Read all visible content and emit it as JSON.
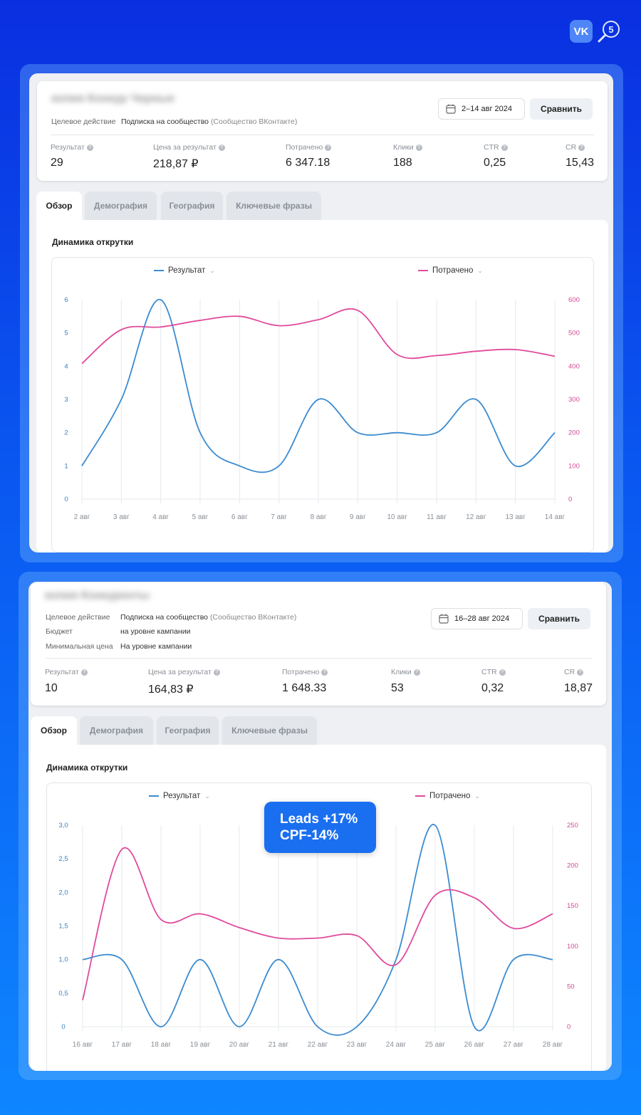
{
  "logos": {
    "vk": "VK",
    "search_icon": "search-5-icon"
  },
  "colors": {
    "result": "#3b8bd0",
    "spent": "#e04a9c"
  },
  "reports": [
    {
      "blurred_title": "копия Конкур Черные",
      "meta": [
        {
          "label": "Целевое действие",
          "value": "Подписка на сообщество",
          "value_note": "(Сообщество ВКонтакте)"
        }
      ],
      "date": "2–14 авг 2024",
      "compare": "Сравнить",
      "kpis": [
        {
          "label": "Результат",
          "value": "29"
        },
        {
          "label": "Цена за результат",
          "value": "218,87 ₽"
        },
        {
          "label": "Потрачено",
          "value": "6 347.18"
        },
        {
          "label": "Клики",
          "value": "188"
        },
        {
          "label": "CTR",
          "value": "0,25"
        },
        {
          "label": "CR",
          "value": "15,43"
        }
      ],
      "tabs": [
        "Обзор",
        "Демография",
        "География",
        "Ключевые фразы"
      ],
      "chart_title": "Динамика открутки",
      "legend": {
        "left": "Результат",
        "right": "Потрачено"
      }
    },
    {
      "blurred_title": "копия Конкуренты",
      "meta": [
        {
          "label": "Целевое действие",
          "value": "Подписка на сообщество",
          "value_note": "(Сообщество ВКонтакте)"
        },
        {
          "label": "Бюджет",
          "value": "на уровне кампании",
          "value_note": ""
        },
        {
          "label": "Минимальная цена",
          "value": "На уровне кампании",
          "value_note": ""
        }
      ],
      "date": "16–28 авг 2024",
      "compare": "Сравнить",
      "kpis": [
        {
          "label": "Результат",
          "value": "10"
        },
        {
          "label": "Цена за результат",
          "value": "164,83 ₽"
        },
        {
          "label": "Потрачено",
          "value": "1 648.33"
        },
        {
          "label": "Клики",
          "value": "53"
        },
        {
          "label": "CTR",
          "value": "0,32"
        },
        {
          "label": "CR",
          "value": "18,87"
        }
      ],
      "tabs": [
        "Обзор",
        "Демография",
        "География",
        "Ключевые фразы"
      ],
      "chart_title": "Динамика открутки",
      "legend": {
        "left": "Результат",
        "right": "Потрачено"
      }
    }
  ],
  "badge": {
    "line1": "Leads +17%",
    "line2": "CPF-14%"
  },
  "chart_data": [
    {
      "type": "line",
      "x": [
        "2 авг",
        "3 авг",
        "4 авг",
        "5 авг",
        "6 авг",
        "7 авг",
        "8 авг",
        "9 авг",
        "10 авг",
        "11 авг",
        "12 авг",
        "13 авг",
        "14 авг"
      ],
      "y_left_ticks": [
        "0",
        "1",
        "2",
        "3",
        "4",
        "5",
        "6"
      ],
      "y_right_ticks": [
        "0",
        "100",
        "200",
        "300",
        "400",
        "500",
        "600"
      ],
      "ylim_left": [
        0,
        6
      ],
      "ylim_right": [
        0,
        600
      ],
      "series": [
        {
          "name": "Результат",
          "axis": "left",
          "values": [
            1,
            3,
            6,
            2,
            1,
            1,
            3,
            2,
            2,
            2,
            3,
            1,
            2
          ]
        },
        {
          "name": "Потрачено",
          "axis": "right",
          "values": [
            408,
            510,
            518,
            538,
            550,
            522,
            540,
            568,
            435,
            432,
            445,
            450,
            430
          ]
        }
      ]
    },
    {
      "type": "line",
      "x": [
        "16 авг",
        "17 авг",
        "18 авг",
        "19 авг",
        "20 авг",
        "21 авг",
        "22 авг",
        "23 авг",
        "24 авг",
        "25 авг",
        "26 авг",
        "27 авг",
        "28 авг"
      ],
      "y_left_ticks": [
        "0",
        "0,5",
        "1,0",
        "1,5",
        "2,0",
        "2,5",
        "3,0"
      ],
      "y_right_ticks": [
        "0",
        "50",
        "100",
        "150",
        "200",
        "250"
      ],
      "ylim_left": [
        0,
        3
      ],
      "ylim_right": [
        0,
        250
      ],
      "series": [
        {
          "name": "Результат",
          "axis": "left",
          "values": [
            1,
            1,
            0,
            1,
            0,
            1,
            0,
            0,
            1,
            3,
            0,
            1,
            1
          ]
        },
        {
          "name": "Потрачено",
          "axis": "right",
          "values": [
            33,
            220,
            133,
            140,
            123,
            110,
            110,
            113,
            77,
            163,
            160,
            122,
            140
          ]
        }
      ]
    }
  ]
}
